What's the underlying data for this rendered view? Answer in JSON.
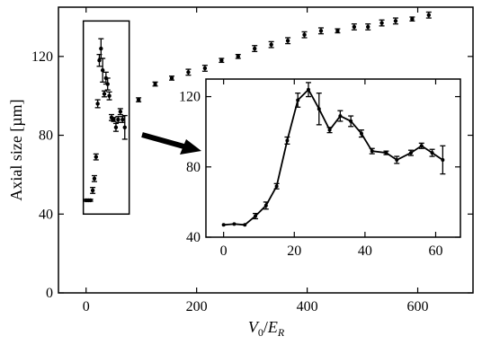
{
  "chart_data": [
    {
      "id": "main",
      "type": "scatter",
      "xlabel_parts": [
        "V",
        "0",
        "/",
        "E",
        "R"
      ],
      "ylabel": "Axial size [µm]",
      "xlim": [
        -50,
        700
      ],
      "ylim": [
        0,
        145
      ],
      "xticks": [
        0,
        200,
        400,
        600
      ],
      "yticks": [
        0,
        40,
        80,
        120
      ],
      "xtick_labels": [
        "0",
        "200",
        "400",
        "600"
      ],
      "ytick_labels": [
        "0",
        "40",
        "80",
        "120"
      ],
      "series": [
        {
          "points": [
            {
              "x": 0,
              "y": 47,
              "err": 0.5
            },
            {
              "x": 4,
              "y": 47,
              "err": 0.5
            },
            {
              "x": 8,
              "y": 47,
              "err": 0.5
            },
            {
              "x": 12,
              "y": 52,
              "err": 1.5
            },
            {
              "x": 15,
              "y": 58,
              "err": 1.5
            },
            {
              "x": 18,
              "y": 69,
              "err": 1.5
            },
            {
              "x": 21,
              "y": 96,
              "err": 2
            },
            {
              "x": 24,
              "y": 118,
              "err": 3
            },
            {
              "x": 27,
              "y": 124,
              "err": 5
            },
            {
              "x": 30,
              "y": 113,
              "err": 6
            },
            {
              "x": 33,
              "y": 101,
              "err": 1.5
            },
            {
              "x": 36,
              "y": 109,
              "err": 3
            },
            {
              "x": 39,
              "y": 106,
              "err": 3
            },
            {
              "x": 42,
              "y": 100,
              "err": 2
            },
            {
              "x": 46,
              "y": 89,
              "err": 1.5
            },
            {
              "x": 50,
              "y": 88,
              "err": 1
            },
            {
              "x": 54,
              "y": 84,
              "err": 2
            },
            {
              "x": 58,
              "y": 88,
              "err": 1.5
            },
            {
              "x": 62,
              "y": 92,
              "err": 1.5
            },
            {
              "x": 66,
              "y": 88,
              "err": 1.5
            },
            {
              "x": 70,
              "y": 84,
              "err": 6
            },
            {
              "x": 95,
              "y": 98,
              "err": 1
            },
            {
              "x": 125,
              "y": 106,
              "err": 1
            },
            {
              "x": 155,
              "y": 109,
              "err": 1
            },
            {
              "x": 185,
              "y": 112,
              "err": 1.5
            },
            {
              "x": 215,
              "y": 114,
              "err": 1.5
            },
            {
              "x": 245,
              "y": 118,
              "err": 1
            },
            {
              "x": 275,
              "y": 120,
              "err": 1
            },
            {
              "x": 305,
              "y": 124,
              "err": 1.5
            },
            {
              "x": 335,
              "y": 126,
              "err": 1.5
            },
            {
              "x": 365,
              "y": 128,
              "err": 1.5
            },
            {
              "x": 395,
              "y": 131,
              "err": 1.5
            },
            {
              "x": 425,
              "y": 133,
              "err": 1.5
            },
            {
              "x": 455,
              "y": 133,
              "err": 1
            },
            {
              "x": 485,
              "y": 135,
              "err": 1.5
            },
            {
              "x": 510,
              "y": 135,
              "err": 1.5
            },
            {
              "x": 535,
              "y": 137,
              "err": 1.5
            },
            {
              "x": 560,
              "y": 138,
              "err": 1.5
            },
            {
              "x": 590,
              "y": 139,
              "err": 1
            },
            {
              "x": 620,
              "y": 141,
              "err": 1.5
            }
          ]
        }
      ],
      "highlight_box": {
        "x": [
          -5,
          78
        ],
        "y": [
          40,
          138
        ]
      }
    },
    {
      "id": "inset",
      "type": "line",
      "xlim": [
        -5,
        67
      ],
      "ylim": [
        40,
        130
      ],
      "xticks": [
        0,
        20,
        40,
        60
      ],
      "yticks": [
        40,
        80,
        120
      ],
      "xtick_labels": [
        "0",
        "20",
        "40",
        "60"
      ],
      "ytick_labels": [
        "40",
        "80",
        "120"
      ],
      "series": [
        {
          "points": [
            {
              "x": 0,
              "y": 47,
              "err": 0.5
            },
            {
              "x": 3,
              "y": 47.5,
              "err": 0.5
            },
            {
              "x": 6,
              "y": 47,
              "err": 0.5
            },
            {
              "x": 9,
              "y": 52,
              "err": 1.5
            },
            {
              "x": 12,
              "y": 58,
              "err": 2
            },
            {
              "x": 15,
              "y": 69,
              "err": 1.5
            },
            {
              "x": 18,
              "y": 95,
              "err": 2
            },
            {
              "x": 21,
              "y": 118,
              "err": 4
            },
            {
              "x": 24,
              "y": 124,
              "err": 4
            },
            {
              "x": 27,
              "y": 113,
              "err": 9
            },
            {
              "x": 30,
              "y": 101,
              "err": 1.5
            },
            {
              "x": 33,
              "y": 109,
              "err": 3
            },
            {
              "x": 36,
              "y": 106,
              "err": 3
            },
            {
              "x": 39,
              "y": 99,
              "err": 2
            },
            {
              "x": 42,
              "y": 89,
              "err": 1.5
            },
            {
              "x": 46,
              "y": 88,
              "err": 1
            },
            {
              "x": 49,
              "y": 84,
              "err": 2
            },
            {
              "x": 53,
              "y": 88,
              "err": 1.5
            },
            {
              "x": 56,
              "y": 92,
              "err": 1.5
            },
            {
              "x": 59,
              "y": 88,
              "err": 2
            },
            {
              "x": 62,
              "y": 84,
              "err": 8
            }
          ]
        }
      ]
    }
  ]
}
